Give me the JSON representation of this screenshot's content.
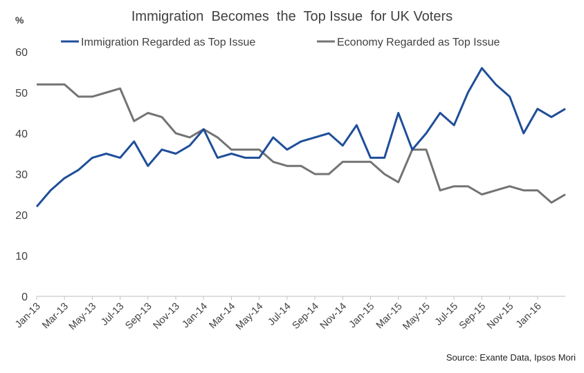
{
  "chart_data": {
    "type": "line",
    "title": "Immigration  Becomes  the  Top Issue  for UK Voters",
    "unit_label": "%",
    "source": "Source: Exante Data, Ipsos Mori",
    "x": [
      "Jan-13",
      "Feb-13",
      "Mar-13",
      "Apr-13",
      "May-13",
      "Jun-13",
      "Jul-13",
      "Aug-13",
      "Sep-13",
      "Oct-13",
      "Nov-13",
      "Dec-13",
      "Jan-14",
      "Feb-14",
      "Mar-14",
      "Apr-14",
      "May-14",
      "Jun-14",
      "Jul-14",
      "Aug-14",
      "Sep-14",
      "Oct-14",
      "Nov-14",
      "Dec-14",
      "Jan-15",
      "Feb-15",
      "Mar-15",
      "Apr-15",
      "May-15",
      "Jun-15",
      "Jul-15",
      "Aug-15",
      "Sep-15",
      "Oct-15",
      "Nov-15",
      "Dec-15",
      "Jan-16",
      "Feb-16",
      "Mar-16"
    ],
    "x_tick_labels": [
      "Jan-13",
      "Mar-13",
      "May-13",
      "Jul-13",
      "Sep-13",
      "Nov-13",
      "Jan-14",
      "Mar-14",
      "May-14",
      "Jul-14",
      "Sep-14",
      "Nov-14",
      "Jan-15",
      "Mar-15",
      "May-15",
      "Jul-15",
      "Sep-15",
      "Nov-15",
      "Jan-16"
    ],
    "y_ticks": [
      0,
      10,
      20,
      30,
      40,
      50,
      60
    ],
    "ylim": [
      0,
      60
    ],
    "grid": false,
    "legend_position": "top",
    "series": [
      {
        "name": "Immigration Regarded as Top Issue",
        "color": "#1f4e99",
        "values": [
          22,
          26,
          29,
          31,
          34,
          35,
          34,
          38,
          32,
          36,
          35,
          37,
          41,
          34,
          35,
          34,
          34,
          39,
          36,
          38,
          39,
          40,
          37,
          42,
          34,
          34,
          45,
          36,
          40,
          45,
          42,
          50,
          56,
          52,
          49,
          40,
          46,
          44,
          46
        ]
      },
      {
        "name": "Economy Regarded as Top Issue",
        "color": "#737373",
        "values": [
          52,
          52,
          52,
          49,
          49,
          50,
          51,
          43,
          45,
          44,
          40,
          39,
          41,
          39,
          36,
          36,
          36,
          33,
          32,
          32,
          30,
          30,
          33,
          33,
          33,
          30,
          28,
          36,
          36,
          26,
          27,
          27,
          25,
          26,
          27,
          26,
          26,
          23,
          25
        ]
      }
    ]
  }
}
